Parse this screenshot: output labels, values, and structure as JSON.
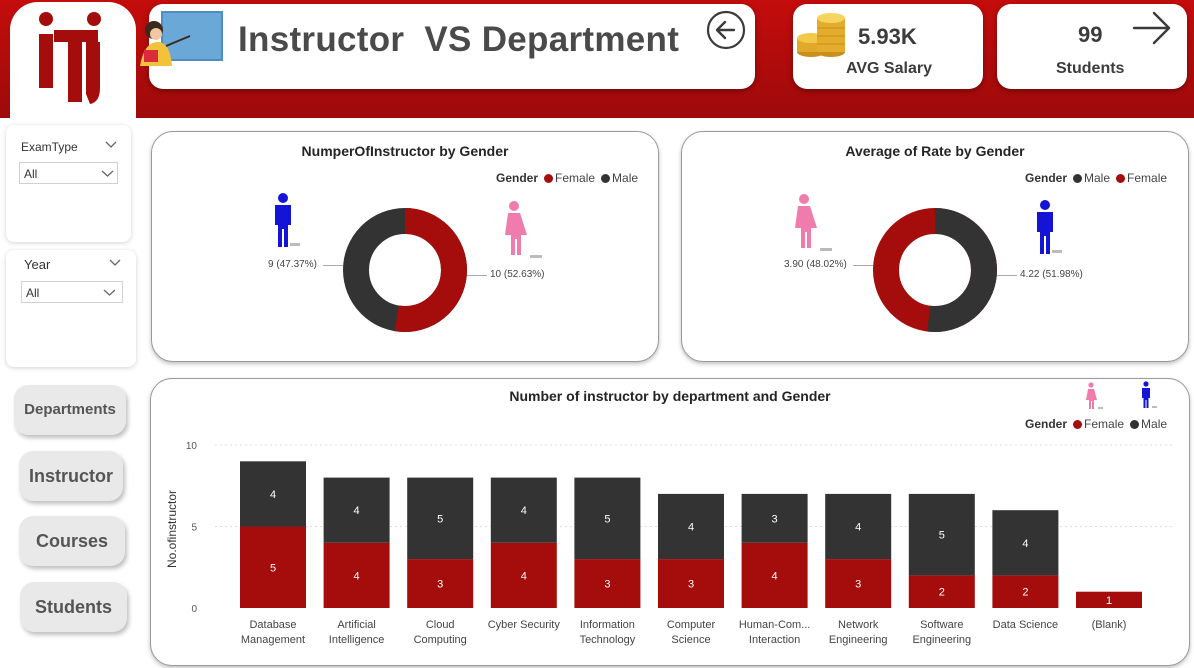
{
  "header": {
    "title": "Instructor  VS Department"
  },
  "kpis": {
    "avg_salary": {
      "value": "5.93K",
      "label": "AVG Salary"
    },
    "students": {
      "value": "99",
      "label": "Students"
    }
  },
  "slicers": {
    "exam_type": {
      "title": "ExamType",
      "value": "All"
    },
    "year": {
      "title": "Year",
      "value": "All"
    }
  },
  "nav": {
    "departments": "Departments",
    "instructor": "Instructor",
    "courses": "Courses",
    "students": "Students"
  },
  "colors": {
    "female": "#a50c0c",
    "male": "#333333",
    "female_icon": "#f07cad",
    "male_icon": "#1414d6"
  },
  "donut1": {
    "title": "NumperOfInstructor by Gender",
    "legend": {
      "title": "Gender",
      "first": "Female",
      "second": "Male"
    },
    "male_label": "9 (47.37%)",
    "female_label": "10 (52.63%)"
  },
  "donut2": {
    "title": "Average of Rate by Gender",
    "legend": {
      "title": "Gender",
      "first": "Male",
      "second": "Female"
    },
    "female_label": "3.90 (48.02%)",
    "male_label": "4.22 (51.98%)"
  },
  "barchart": {
    "title": "Number of instructor by department and Gender",
    "legend": {
      "title": "Gender",
      "first": "Female",
      "second": "Male"
    },
    "ylabel": "No.ofinstructor"
  },
  "chart_data": [
    {
      "type": "pie",
      "title": "NumperOfInstructor by Gender",
      "legend_title": "Gender",
      "categories": [
        "Female",
        "Male"
      ],
      "values": [
        10,
        9
      ],
      "percent": [
        52.63,
        47.37
      ]
    },
    {
      "type": "pie",
      "title": "Average of Rate by Gender",
      "legend_title": "Gender",
      "categories": [
        "Male",
        "Female"
      ],
      "values": [
        4.22,
        3.9
      ],
      "percent": [
        51.98,
        48.02
      ]
    },
    {
      "type": "bar",
      "stacked": true,
      "title": "Number of instructor by department and Gender",
      "legend_title": "Gender",
      "ylabel": "No.ofinstructor",
      "ylim": [
        0,
        10
      ],
      "yticks": [
        0,
        5,
        10
      ],
      "categories": [
        [
          "Database",
          "Management"
        ],
        [
          "Artificial",
          "Intelligence"
        ],
        [
          "Cloud",
          "Computing"
        ],
        [
          "Cyber Security"
        ],
        [
          "Information",
          "Technology"
        ],
        [
          "Computer",
          "Science"
        ],
        [
          "Human-Com...",
          "Interaction"
        ],
        [
          "Network",
          "Engineering"
        ],
        [
          "Software",
          "Engineering"
        ],
        [
          "Data Science"
        ],
        [
          "(Blank)"
        ]
      ],
      "series": [
        {
          "name": "Female",
          "values": [
            5,
            4,
            3,
            4,
            3,
            3,
            4,
            3,
            2,
            2,
            1
          ]
        },
        {
          "name": "Male",
          "values": [
            4,
            4,
            5,
            4,
            5,
            4,
            3,
            4,
            5,
            4,
            0
          ]
        }
      ]
    }
  ]
}
